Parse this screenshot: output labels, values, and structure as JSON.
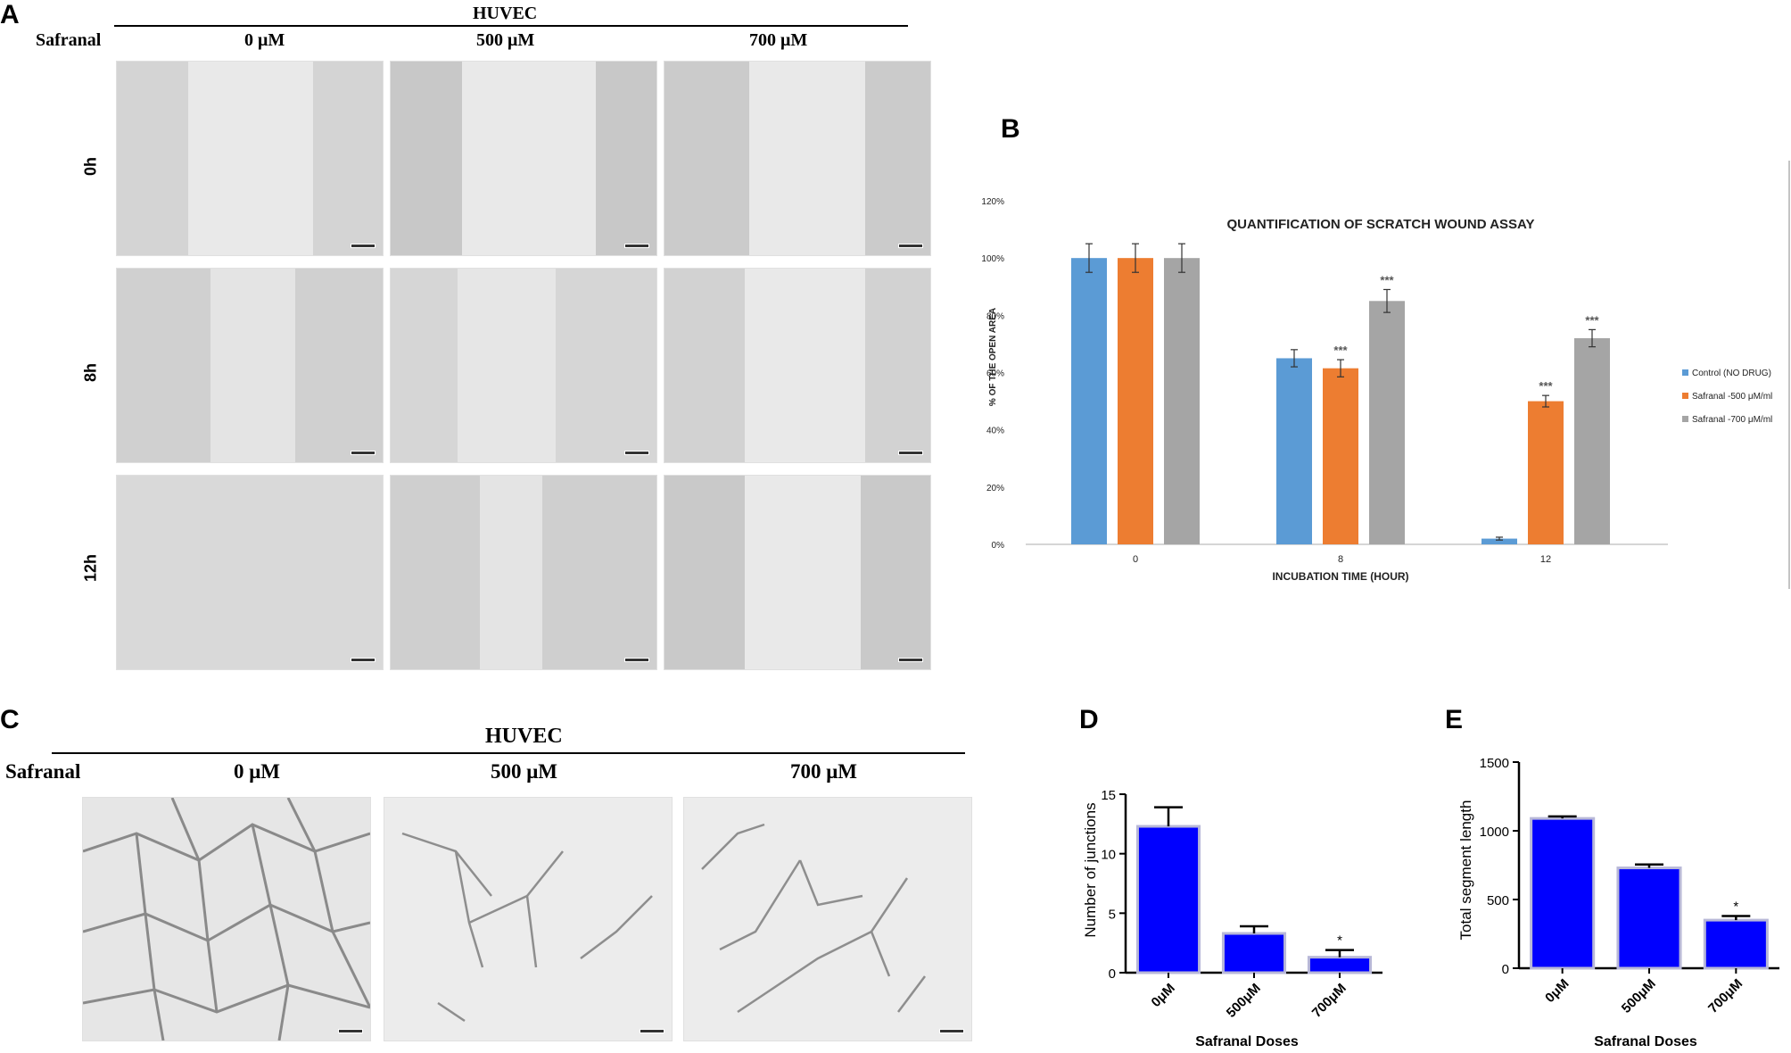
{
  "panel_a": {
    "letter": "A",
    "cell_line": "HUVEC",
    "treatment": "Safranal",
    "doses": [
      "0 μM",
      "500 μM",
      "700 μM"
    ],
    "times": [
      "0h",
      "8h",
      "12h"
    ]
  },
  "panel_c": {
    "letter": "C",
    "cell_line": "HUVEC",
    "treatment": "Safranal",
    "doses": [
      "0 μM",
      "500 μM",
      "700 μM"
    ]
  },
  "colors": {
    "control": "#5b9bd5",
    "safranal_500": "#ed7d31",
    "safranal_700": "#a5a5a5",
    "bar_blue": "#0000ff",
    "bar_edge": "#b8b8d8"
  },
  "chart_data": [
    {
      "panel": "B",
      "type": "bar",
      "title": "QUANTIFICATION OF SCRATCH WOUND ASSAY",
      "xlabel": "INCUBATION TIME (HOUR)",
      "ylabel": "% OF THE OPEN AREA",
      "categories": [
        "0",
        "8",
        "12"
      ],
      "ylim": [
        0,
        120
      ],
      "yticks": [
        "0%",
        "20%",
        "40%",
        "60%",
        "80%",
        "100%",
        "120%"
      ],
      "legend_position": "right",
      "grid": false,
      "series": [
        {
          "name": "Control (NO DRUG)",
          "values": [
            100,
            65,
            2
          ],
          "errors": [
            5,
            3,
            0.5
          ],
          "sig": [
            "",
            "",
            ""
          ]
        },
        {
          "name": "Safranal -500 μM/ml",
          "values": [
            100,
            61.5,
            50
          ],
          "errors": [
            5,
            3,
            2
          ],
          "sig": [
            "",
            "***",
            "***"
          ]
        },
        {
          "name": "Safranal -700 μM/ml",
          "values": [
            100,
            85,
            72
          ],
          "errors": [
            5,
            4,
            3
          ],
          "sig": [
            "",
            "***",
            "***"
          ]
        }
      ]
    },
    {
      "panel": "D",
      "type": "bar",
      "xlabel": "Safranal Doses",
      "ylabel": "Number of junctions",
      "categories": [
        "0μM",
        "500μM",
        "700μM"
      ],
      "values": [
        12.3,
        3.3,
        1.3
      ],
      "errors": [
        1.6,
        0.6,
        0.6
      ],
      "sig": [
        "",
        "",
        "*"
      ],
      "ylim": [
        0,
        15
      ],
      "yticks": [
        "0",
        "5",
        "10",
        "15"
      ]
    },
    {
      "panel": "E",
      "type": "bar",
      "xlabel": "Safranal Doses",
      "ylabel": "Total segment length",
      "categories": [
        "0μM",
        "500μM",
        "700μM"
      ],
      "values": [
        1090,
        730,
        350
      ],
      "errors": [
        15,
        25,
        30
      ],
      "sig": [
        "",
        "",
        "*"
      ],
      "ylim": [
        0,
        1500
      ],
      "yticks": [
        "0",
        "500",
        "1000",
        "1500"
      ]
    }
  ]
}
